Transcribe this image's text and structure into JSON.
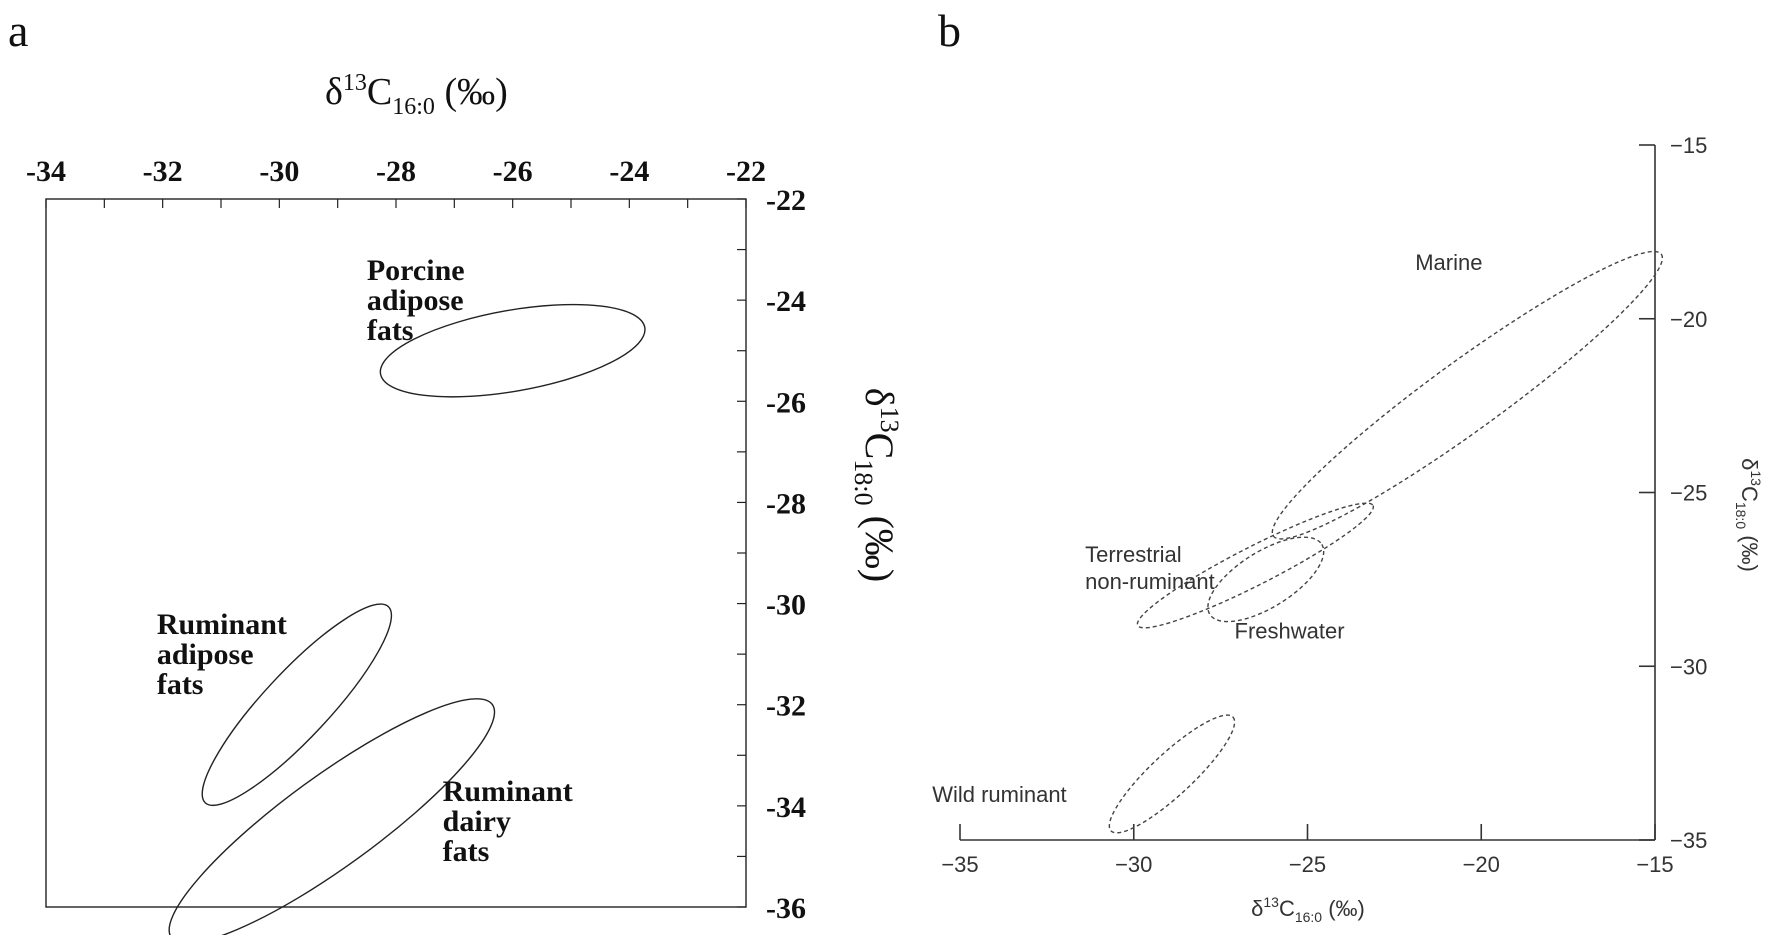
{
  "chart_data": [
    {
      "panel_label": "a",
      "type": "scatter",
      "xlabel": {
        "main": "δ",
        "sup": "13",
        "base": "C",
        "sub": "16:0",
        "unit": " (‰)"
      },
      "ylabel": {
        "main": "δ",
        "sup": "13",
        "base": "C",
        "sub": "18:0",
        "unit": " (‰)"
      },
      "xlim": [
        -34,
        -22
      ],
      "ylim": [
        -36,
        -22
      ],
      "x_ticks": [
        "-34",
        "-32",
        "-30",
        "-28",
        "-26",
        "-24",
        "-22"
      ],
      "y_ticks": [
        "-22",
        "-24",
        "-26",
        "-28",
        "-30",
        "-32",
        "-34",
        "-36"
      ],
      "minor_step": 1,
      "grid": false,
      "regions": [
        {
          "name": "Porcine adipose fats",
          "label_lines": [
            "Porcine",
            "adipose",
            "fats"
          ],
          "center": [
            -26.0,
            -25.0
          ],
          "rx": 2.3,
          "ry": 0.8,
          "rot": -10,
          "label_at": [
            -28.5,
            -23.6
          ]
        },
        {
          "name": "Ruminant adipose fats",
          "label_lines": [
            "Ruminant",
            "adipose",
            "fats"
          ],
          "center": [
            -29.7,
            -32.0
          ],
          "rx": 2.3,
          "ry": 0.65,
          "rot": -47,
          "label_at": [
            -32.1,
            -30.6
          ]
        },
        {
          "name": "Ruminant dairy fats",
          "label_lines": [
            "Ruminant",
            "dairy",
            "fats"
          ],
          "center": [
            -29.1,
            -34.3
          ],
          "rx": 3.4,
          "ry": 0.9,
          "rot": -36,
          "label_at": [
            -27.2,
            -33.9
          ]
        }
      ]
    },
    {
      "panel_label": "b",
      "type": "scatter",
      "xlabel": {
        "main": "δ",
        "sup": "13",
        "base": "C",
        "sub": "16:0",
        "unit": " (‰)"
      },
      "ylabel": {
        "main": "δ",
        "sup": "13",
        "base": "C",
        "sub": "18:0",
        "unit": " (‰)"
      },
      "xlim": [
        -35,
        -15
      ],
      "ylim": [
        -35,
        -15
      ],
      "x_ticks": [
        "−35",
        "−30",
        "−25",
        "−20",
        "−15"
      ],
      "y_ticks": [
        "−15",
        "−20",
        "−25",
        "−30",
        "−35"
      ],
      "grid": false,
      "regions": [
        {
          "name": "Marine",
          "label_lines": [
            "Marine"
          ],
          "center": [
            -20.4,
            -22.2
          ],
          "rx": 6.9,
          "ry": 1.0,
          "rot": -36,
          "label_at": [
            -21.9,
            -18.6
          ]
        },
        {
          "name": "Terrestrial non-ruminant",
          "label_lines": [
            "Terrestrial",
            "non-ruminant"
          ],
          "center": [
            -26.5,
            -27.1
          ],
          "rx": 3.8,
          "ry": 0.55,
          "rot": -27,
          "label_at": [
            -31.4,
            -27.0
          ]
        },
        {
          "name": "Freshwater",
          "label_lines": [
            "Freshwater"
          ],
          "center": [
            -26.2,
            -27.5
          ],
          "rx": 1.9,
          "ry": 0.8,
          "rot": -32,
          "label_at": [
            -27.1,
            -29.2
          ]
        },
        {
          "name": "Wild ruminant",
          "label_lines": [
            "Wild ruminant"
          ],
          "center": [
            -28.9,
            -33.1
          ],
          "rx": 2.4,
          "ry": 0.6,
          "rot": -43,
          "label_at": [
            -35.8,
            -33.9
          ]
        }
      ]
    }
  ]
}
